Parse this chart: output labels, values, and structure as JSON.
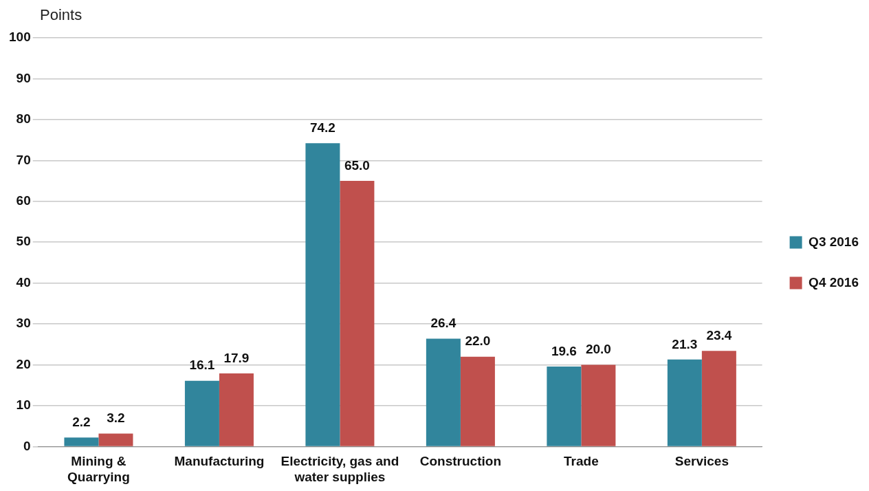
{
  "chart_data": {
    "type": "bar",
    "ylabel": "Points",
    "categories": [
      "Mining & Quarrying",
      "Manufacturing",
      "Electricity, gas and water supplies",
      "Construction",
      "Trade",
      "Services"
    ],
    "series": [
      {
        "name": "Q3 2016",
        "color": "#31859c",
        "values": [
          2.2,
          16.1,
          74.2,
          26.4,
          19.6,
          21.3
        ],
        "value_labels": [
          "2.2",
          "16.1",
          "74.2",
          "26.4",
          "19.6",
          "21.3"
        ]
      },
      {
        "name": "Q4 2016",
        "color": "#c0504d",
        "values": [
          3.2,
          17.9,
          65.0,
          22.0,
          20.0,
          23.4
        ],
        "value_labels": [
          "3.2",
          "17.9",
          "65.0",
          "22.0",
          "20.0",
          "23.4"
        ]
      }
    ],
    "ylim": [
      0,
      100
    ],
    "yticks": [
      0,
      10,
      20,
      30,
      40,
      50,
      60,
      70,
      80,
      90,
      100
    ],
    "grid": "y",
    "legend": "right"
  }
}
